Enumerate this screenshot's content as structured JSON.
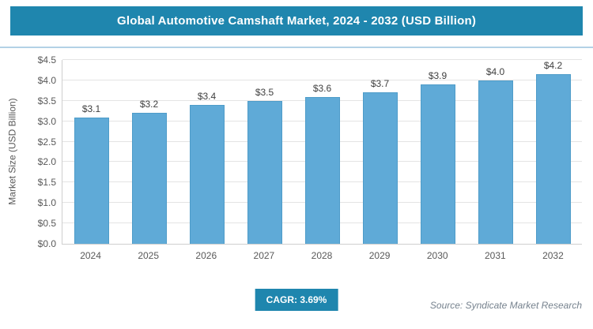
{
  "header": {
    "title": "Global Automotive Camshaft Market, 2024 - 2032 (USD Billion)"
  },
  "chart_data": {
    "type": "bar",
    "title": "Global Automotive Camshaft Market, 2024 - 2032 (USD Billion)",
    "categories": [
      "2024",
      "2025",
      "2026",
      "2027",
      "2028",
      "2029",
      "2030",
      "2031",
      "2032"
    ],
    "values": [
      3.1,
      3.2,
      3.4,
      3.5,
      3.6,
      3.7,
      3.9,
      4.0,
      4.2
    ],
    "bar_labels": [
      "$3.1",
      "$3.2",
      "$3.4",
      "$3.5",
      "$3.6",
      "$3.7",
      "$3.9",
      "$4.0",
      "$4.2"
    ],
    "xlabel": "",
    "ylabel": "Market Size (USD Billion)",
    "ylim": [
      0,
      4.5
    ],
    "ytick_values": [
      0,
      0.5,
      1.0,
      1.5,
      2.0,
      2.5,
      3.0,
      3.5,
      4.0,
      4.5
    ],
    "ytick_labels": [
      "$0.0",
      "$0.5",
      "$1.0",
      "$1.5",
      "$2.0",
      "$2.5",
      "$3.0",
      "$3.5",
      "$4.0",
      "$4.5"
    ],
    "grid": "horizontal",
    "legend": "none"
  },
  "footer": {
    "cagr": "CAGR: 3.69%",
    "source": "Source: Syndicate Market Research"
  },
  "colors": {
    "accent": "#1F86AE",
    "bar": "#5FAAD7",
    "bar_edge": "#4E9CC9",
    "grid": "#E4E4E4",
    "axis": "#CFCFCF",
    "tick_text": "#595959",
    "value_label": "#404040",
    "divider": "#B3D2E6",
    "source_text": "#76828E"
  }
}
